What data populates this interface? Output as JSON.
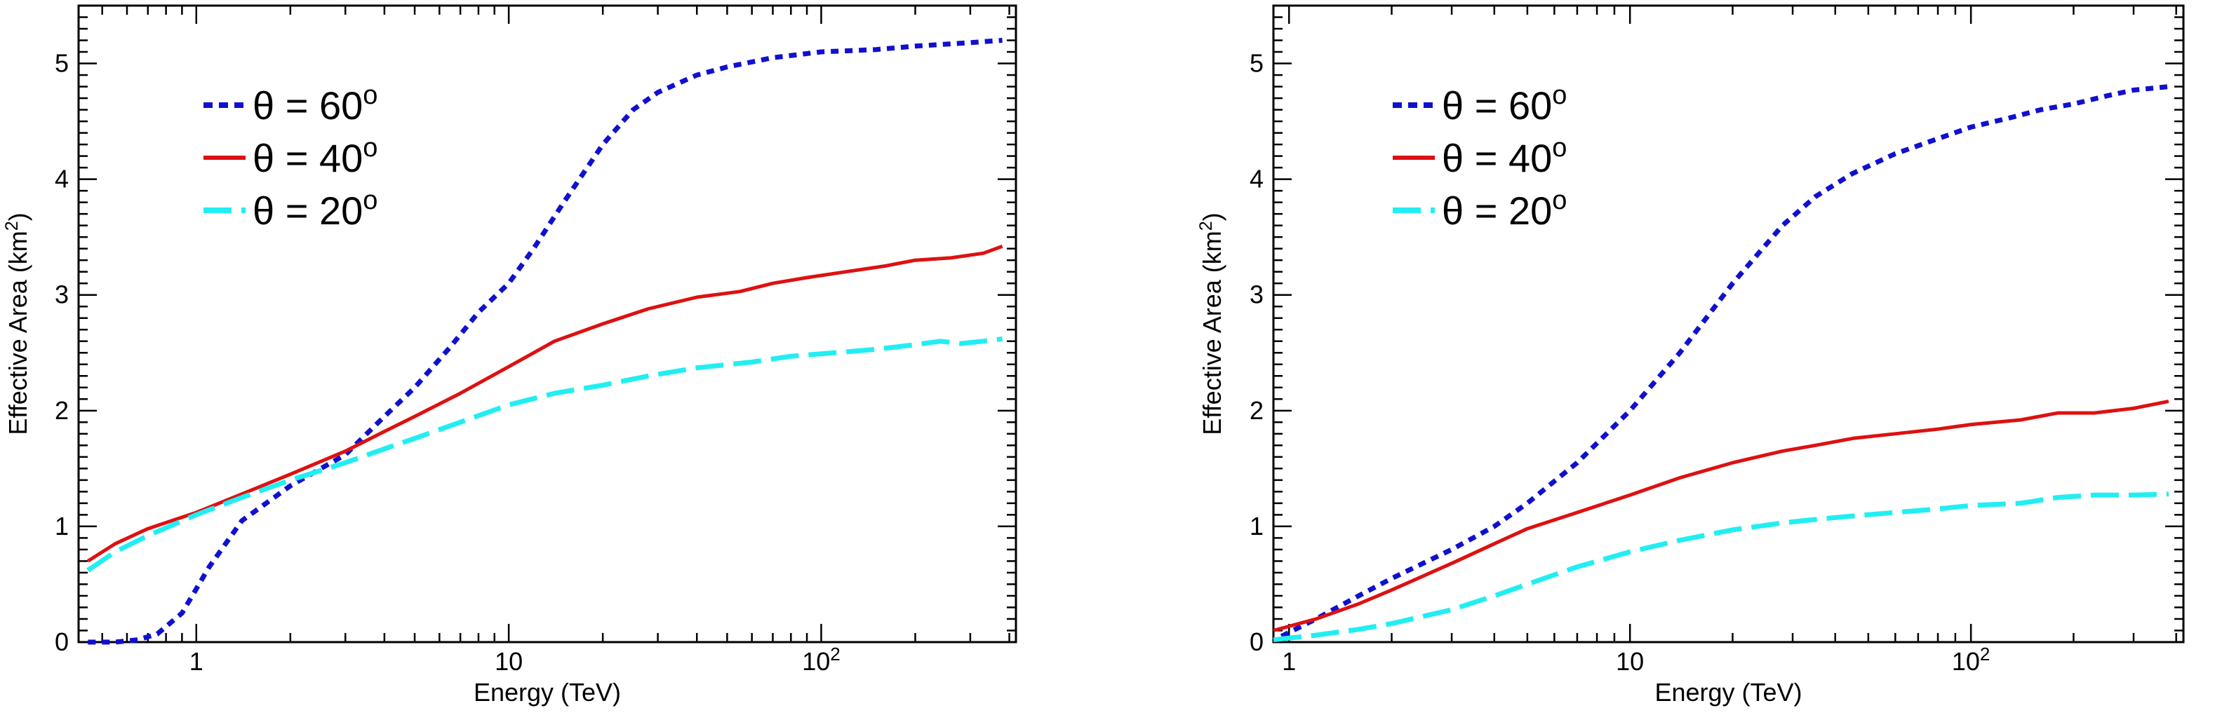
{
  "chart_data": [
    {
      "type": "line",
      "xscale": "log",
      "xlabel": "Energy (TeV)",
      "ylabel": "Effective Area (km",
      "ylabel_sup": "2",
      "ylabel_close": ")",
      "xlim": [
        0.42,
        420
      ],
      "ylim": [
        0,
        5.5
      ],
      "yticks": [
        "0",
        "1",
        "2",
        "3",
        "4",
        "5"
      ],
      "xticks": [
        "1",
        "10",
        "10"
      ],
      "xtick_sup": "2",
      "legend": "top-left",
      "series": [
        {
          "name": "θ = 60",
          "deg": "o",
          "color": "#1010d0",
          "style": "dotted",
          "x": [
            0.45,
            0.55,
            0.65,
            0.75,
            0.9,
            1.1,
            1.4,
            2.0,
            3.0,
            4.0,
            5.0,
            6.5,
            8.0,
            10.0,
            12.0,
            15.0,
            20.0,
            25.0,
            30.0,
            40.0,
            50.0,
            70.0,
            100.0,
            150.0,
            200.0,
            300.0,
            380.0
          ],
          "y": [
            0.0,
            0.0,
            0.02,
            0.07,
            0.25,
            0.65,
            1.05,
            1.35,
            1.62,
            1.95,
            2.2,
            2.55,
            2.85,
            3.1,
            3.4,
            3.8,
            4.3,
            4.6,
            4.75,
            4.9,
            4.97,
            5.05,
            5.1,
            5.12,
            5.15,
            5.18,
            5.2
          ]
        },
        {
          "name": "θ = 40",
          "deg": "o",
          "color": "#dd1111",
          "style": "solid",
          "x": [
            0.45,
            0.55,
            0.7,
            1.0,
            1.4,
            2.0,
            3.0,
            4.0,
            5.0,
            7.0,
            10.0,
            14.0,
            20.0,
            28.0,
            40.0,
            55.0,
            70.0,
            90.0,
            120.0,
            160.0,
            200.0,
            260.0,
            330.0,
            380.0
          ],
          "y": [
            0.7,
            0.85,
            0.98,
            1.12,
            1.28,
            1.45,
            1.65,
            1.82,
            1.95,
            2.15,
            2.38,
            2.6,
            2.75,
            2.88,
            2.98,
            3.03,
            3.1,
            3.15,
            3.2,
            3.25,
            3.3,
            3.32,
            3.36,
            3.42
          ]
        },
        {
          "name": "θ = 20",
          "deg": "o",
          "color": "#22eef2",
          "style": "longdash",
          "x": [
            0.45,
            0.55,
            0.7,
            1.0,
            1.4,
            2.0,
            3.0,
            4.0,
            5.0,
            7.0,
            10.0,
            14.0,
            20.0,
            28.0,
            40.0,
            60.0,
            80.0,
            110.0,
            150.0,
            200.0,
            240.0,
            280.0,
            330.0,
            380.0
          ],
          "y": [
            0.62,
            0.78,
            0.92,
            1.1,
            1.25,
            1.4,
            1.55,
            1.67,
            1.76,
            1.9,
            2.05,
            2.15,
            2.22,
            2.3,
            2.37,
            2.42,
            2.47,
            2.5,
            2.53,
            2.57,
            2.6,
            2.58,
            2.6,
            2.62
          ]
        }
      ]
    },
    {
      "type": "line",
      "xscale": "log",
      "xlabel": "Energy (TeV)",
      "ylabel": "Effective Area (km",
      "ylabel_sup": "2",
      "ylabel_close": ")",
      "xlim": [
        0.9,
        420
      ],
      "ylim": [
        0,
        5.5
      ],
      "yticks": [
        "0",
        "1",
        "2",
        "3",
        "4",
        "5"
      ],
      "xticks": [
        "1",
        "10",
        "10"
      ],
      "xtick_sup": "2",
      "legend": "top-left",
      "series": [
        {
          "name": "θ = 60",
          "deg": "o",
          "color": "#1010d0",
          "style": "dotted",
          "x": [
            0.95,
            1.2,
            1.6,
            2.0,
            3.0,
            4.0,
            5.0,
            7.0,
            10.0,
            14.0,
            20.0,
            28.0,
            35.0,
            45.0,
            60.0,
            80.0,
            100.0,
            130.0,
            160.0,
            200.0,
            250.0,
            300.0,
            380.0
          ],
          "y": [
            0.05,
            0.2,
            0.4,
            0.55,
            0.8,
            1.0,
            1.2,
            1.55,
            2.0,
            2.5,
            3.1,
            3.6,
            3.85,
            4.05,
            4.22,
            4.35,
            4.45,
            4.53,
            4.6,
            4.65,
            4.72,
            4.77,
            4.8
          ]
        },
        {
          "name": "θ = 40",
          "deg": "o",
          "color": "#dd1111",
          "style": "solid",
          "x": [
            0.9,
            1.2,
            1.6,
            2.0,
            3.0,
            4.0,
            5.0,
            7.0,
            10.0,
            14.0,
            20.0,
            28.0,
            35.0,
            45.0,
            60.0,
            80.0,
            100.0,
            140.0,
            180.0,
            230.0,
            300.0,
            380.0
          ],
          "y": [
            0.1,
            0.2,
            0.33,
            0.45,
            0.68,
            0.85,
            0.98,
            1.12,
            1.27,
            1.42,
            1.55,
            1.65,
            1.7,
            1.76,
            1.8,
            1.84,
            1.88,
            1.92,
            1.98,
            1.98,
            2.02,
            2.08
          ]
        },
        {
          "name": "θ = 20",
          "deg": "o",
          "color": "#22eef2",
          "style": "longdash",
          "x": [
            0.9,
            1.2,
            1.6,
            2.0,
            3.0,
            4.0,
            5.0,
            7.0,
            10.0,
            14.0,
            20.0,
            28.0,
            35.0,
            45.0,
            60.0,
            80.0,
            100.0,
            140.0,
            180.0,
            230.0,
            300.0,
            380.0
          ],
          "y": [
            0.02,
            0.06,
            0.11,
            0.16,
            0.28,
            0.4,
            0.5,
            0.65,
            0.78,
            0.88,
            0.97,
            1.03,
            1.06,
            1.09,
            1.12,
            1.15,
            1.18,
            1.2,
            1.25,
            1.27,
            1.27,
            1.28
          ]
        }
      ]
    }
  ]
}
